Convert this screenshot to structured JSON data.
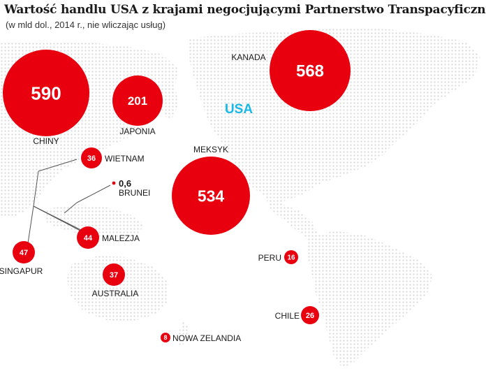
{
  "header": {
    "title": "Wartość handlu USA z krajami negocjującymi Partnerstwo Transpacyficzne",
    "subtitle": "(w mld dol., 2014 r., nie wliczając usług)"
  },
  "center_label": "USA",
  "colors": {
    "bubble": "#e8000f",
    "map_dots": "#d9d9d9",
    "usa_label": "#19b8e6",
    "text": "#1a1a1a",
    "leader_lines": "#555555"
  },
  "countries": [
    {
      "id": "chiny",
      "label": "CHINY",
      "value": 590
    },
    {
      "id": "japonia",
      "label": "JAPONIA",
      "value": 201
    },
    {
      "id": "kanada",
      "label": "KANADA",
      "value": 568
    },
    {
      "id": "meksyk",
      "label": "MEKSYK",
      "value": 534
    },
    {
      "id": "wietnam",
      "label": "WIETNAM",
      "value": 36
    },
    {
      "id": "brunei",
      "label": "BRUNEI",
      "value": 0.6,
      "value_text": "0,6"
    },
    {
      "id": "malezja",
      "label": "MALEZJA",
      "value": 44
    },
    {
      "id": "singapur",
      "label": "SINGAPUR",
      "value": 47
    },
    {
      "id": "australia",
      "label": "AUSTRALIA",
      "value": 37
    },
    {
      "id": "peru",
      "label": "PERU",
      "value": 16
    },
    {
      "id": "chile",
      "label": "CHILE",
      "value": 26
    },
    {
      "id": "nowa_zelandia",
      "label": "NOWA ZELANDIA",
      "value": 8
    }
  ]
}
